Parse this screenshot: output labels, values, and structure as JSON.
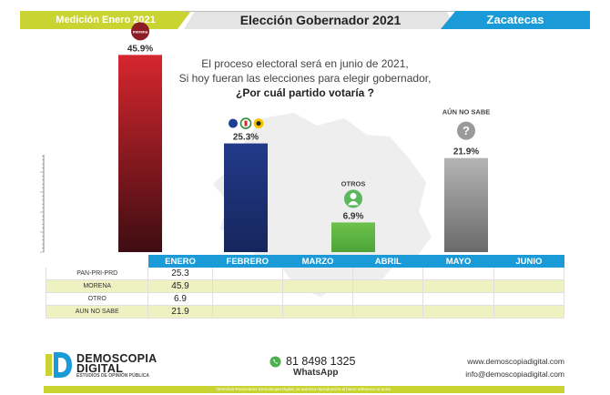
{
  "header": {
    "left": "Medición Enero 2021",
    "center": "Elección Gobernador 2021",
    "right": "Zacatecas"
  },
  "question": {
    "line1": "El proceso electoral será en junio de 2021,",
    "line2": "Si hoy fueran las elecciones para elegir gobernador,",
    "line3": "¿Por cuál partido votaría ?"
  },
  "colors": {
    "lime": "#c9d432",
    "blue": "#1a9bd7",
    "morena": "#8c1b25",
    "pan_pri_prd": "#223a8a",
    "otros": "#5cb85c",
    "aun_no_sabe": "#9a9a9a"
  },
  "chart_data": {
    "type": "bar",
    "title": "",
    "xlabel": "",
    "ylabel": "",
    "ylim": [
      0,
      50
    ],
    "grid": false,
    "categories": [
      "MORENA",
      "PAN-PRI-PRD",
      "OTROS",
      "AÚN NO SABE"
    ],
    "values": [
      45.9,
      25.3,
      6.9,
      21.9
    ],
    "data_labels": [
      "45.9%",
      "25.3%",
      "6.9%",
      "21.9%"
    ],
    "icon_labels": [
      "morena",
      "",
      "OTROS",
      "AÚN NO SABE"
    ],
    "icons": [
      "morena-logo-icon",
      "pan-pri-prd-logos-icon",
      "person-icon",
      "question-mark-icon"
    ]
  },
  "table": {
    "columns": [
      "ENERO",
      "FEBRERO",
      "MARZO",
      "ABRIL",
      "MAYO",
      "JUNIO"
    ],
    "rows": [
      {
        "label": "PAN-PRI-PRD",
        "values": [
          "25.3",
          "",
          "",
          "",
          "",
          ""
        ]
      },
      {
        "label": "MORENA",
        "values": [
          "45.9",
          "",
          "",
          "",
          "",
          ""
        ]
      },
      {
        "label": "OTRO",
        "values": [
          "6.9",
          "",
          "",
          "",
          "",
          ""
        ]
      },
      {
        "label": "AUN NO SABE",
        "values": [
          "21.9",
          "",
          "",
          "",
          "",
          ""
        ]
      }
    ]
  },
  "footer": {
    "logo_line1": "DEMOSCOPIA",
    "logo_line2": "DIGITAL",
    "logo_tagline": "ESTUDIOS DE OPINIÓN PÚBLICA",
    "phone": "81 8498 1325",
    "whatsapp_label": "WhatsApp",
    "website": "www.demoscopiadigital.com",
    "email": "info@demoscopiadigital.com",
    "copyright": "Derechos Reservados Demoscopia Digital, se autoriza reproducción al hacer referencia al autor."
  }
}
